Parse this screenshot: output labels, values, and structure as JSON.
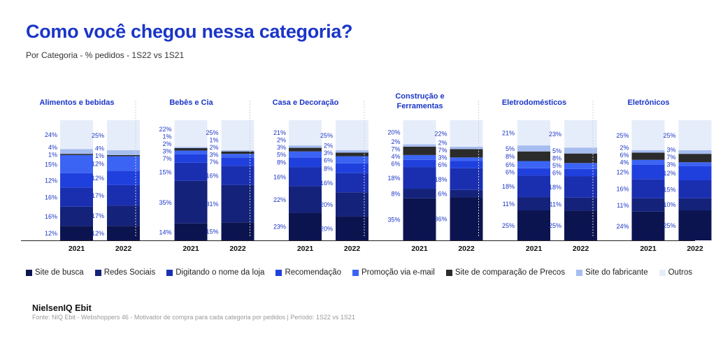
{
  "title": "Como você chegou nessa categoria?",
  "subtitle": "Por Categoria - % pedidos - 1S22 vs 1S21",
  "brand": "NielsenIQ Ebit",
  "source": "Fonte: NIQ Ebit - Webshoppers 46 - Motivador de compra para cada categoria por pedidos | Período: 1S22 vs 1S21",
  "colors": {
    "Site de busca": "#0c1450",
    "Redes Sociais": "#14227a",
    "Digitando o nome da loja": "#1a2fb0",
    "Recomendação": "#2040de",
    "Promoção via e-mail": "#3c64f4",
    "Site de comparação de Precos": "#2b2b2b",
    "Site do fabricante": "#a6bdf0",
    "Outros": "#e6edfa",
    "label": "#1a35c7",
    "header": "#1a35c7"
  },
  "chart_data": {
    "type": "bar",
    "stacked": true,
    "percent": true,
    "series_names": [
      "Site de busca",
      "Redes Sociais",
      "Digitando o nome da loja",
      "Recomendação",
      "Promoção via e-mail",
      "Site de comparação de Precos",
      "Site do fabricante",
      "Outros"
    ],
    "groups": [
      {
        "category": "Alimentos e bebidas",
        "bars": [
          {
            "year": "2021",
            "values": [
              12,
              16,
              16,
              12,
              15,
              1,
              4,
              24
            ],
            "labels": [
              "12%",
              "16%",
              "16%",
              "12%",
              "15%",
              "1%",
              "4%",
              "24%"
            ]
          },
          {
            "year": "2022",
            "values": [
              12,
              17,
              17,
              12,
              12,
              1,
              4,
              25
            ],
            "labels": [
              "12%",
              "17%",
              "17%",
              "12%",
              "12%",
              "1%",
              "4%",
              "25%"
            ]
          }
        ]
      },
      {
        "category": "Bebês e Cia",
        "bars": [
          {
            "year": "2021",
            "values": [
              14,
              35,
              15,
              7,
              3,
              2,
              1,
              22
            ],
            "labels": [
              "14%",
              "35%",
              "15%",
              "7%",
              "3%",
              "2%",
              "1%",
              "22%"
            ]
          },
          {
            "year": "2022",
            "values": [
              15,
              31,
              16,
              7,
              3,
              2,
              1,
              25
            ],
            "labels": [
              "15%",
              "31%",
              "16%",
              "7%",
              "3%",
              "2%",
              "1%",
              "25%"
            ]
          }
        ]
      },
      {
        "category": "Casa e Decoração",
        "bars": [
          {
            "year": "2021",
            "values": [
              23,
              22,
              16,
              8,
              5,
              3,
              2,
              21
            ],
            "labels": [
              "23%",
              "22%",
              "16%",
              "8%",
              "5%",
              "3%",
              "2%",
              "21%"
            ]
          },
          {
            "year": "2022",
            "values": [
              20,
              20,
              16,
              8,
              6,
              3,
              2,
              25
            ],
            "labels": [
              "20%",
              "20%",
              "16%",
              "8%",
              "6%",
              "3%",
              "2%",
              "25%"
            ]
          }
        ]
      },
      {
        "category": [
          "Construção e",
          "Ferramentas"
        ],
        "bars": [
          {
            "year": "2021",
            "values": [
              35,
              8,
              18,
              6,
              4,
              7,
              2,
              20
            ],
            "labels": [
              "35%",
              "8%",
              "18%",
              "6%",
              "4%",
              "7%",
              "2%",
              "20%"
            ]
          },
          {
            "year": "2022",
            "values": [
              36,
              6,
              18,
              6,
              3,
              7,
              2,
              22
            ],
            "labels": [
              "36%",
              "6%",
              "18%",
              "6%",
              "3%",
              "7%",
              "2%",
              "22%"
            ]
          }
        ]
      },
      {
        "category": "Eletrodomésticos",
        "bars": [
          {
            "year": "2021",
            "values": [
              25,
              11,
              18,
              6,
              6,
              8,
              5,
              21
            ],
            "labels": [
              "25%",
              "11%",
              "18%",
              "6%",
              "6%",
              "8%",
              "5%",
              "21%"
            ]
          },
          {
            "year": "2022",
            "values": [
              25,
              11,
              18,
              6,
              5,
              8,
              5,
              23
            ],
            "labels": [
              "25%",
              "11%",
              "18%",
              "6%",
              "5%",
              "8%",
              "5%",
              "23%"
            ]
          }
        ]
      },
      {
        "category": "Eletrônicos",
        "bars": [
          {
            "year": "2021",
            "values": [
              24,
              11,
              16,
              12,
              4,
              6,
              2,
              25
            ],
            "labels": [
              "24%",
              "11%",
              "16%",
              "12%",
              "4%",
              "6%",
              "2%",
              "25%"
            ]
          },
          {
            "year": "2022",
            "values": [
              25,
              10,
              15,
              12,
              3,
              7,
              3,
              25
            ],
            "labels": [
              "25%",
              "10%",
              "15%",
              "12%",
              "3%",
              "7%",
              "3%",
              "25%"
            ]
          }
        ]
      }
    ]
  }
}
